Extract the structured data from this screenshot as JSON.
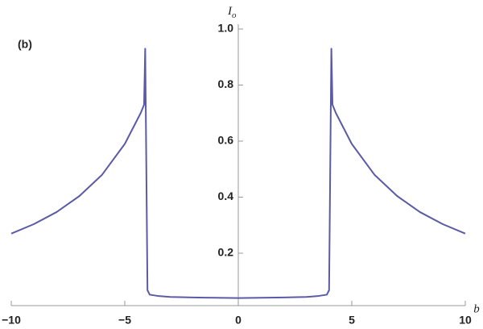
{
  "chart_data": {
    "type": "line",
    "annotation": "(b)",
    "x_label": "b",
    "y_label": {
      "base": "I",
      "sub": "o"
    },
    "x": [
      -10,
      -9,
      -8,
      -7,
      -6,
      -5,
      -4.3,
      -4.15,
      -4.1,
      -4.0,
      -3.9,
      -3.5,
      -3,
      -2,
      -1,
      0,
      1,
      2,
      3,
      3.5,
      3.9,
      4.0,
      4.1,
      4.15,
      4.3,
      5,
      6,
      7,
      8,
      9,
      10
    ],
    "series": [
      {
        "color": "#5b5ba5",
        "values": [
          0.27,
          0.304,
          0.347,
          0.404,
          0.48,
          0.59,
          0.7,
          0.73,
          0.93,
          0.068,
          0.052,
          0.047,
          0.044,
          0.042,
          0.041,
          0.04,
          0.041,
          0.042,
          0.044,
          0.047,
          0.052,
          0.068,
          0.93,
          0.73,
          0.7,
          0.59,
          0.48,
          0.404,
          0.347,
          0.304,
          0.27
        ]
      }
    ],
    "xlim": [
      -10,
      10
    ],
    "ylim": [
      0.013,
      1.0
    ],
    "xticks": [
      {
        "value": -10,
        "label": "−10"
      },
      {
        "value": -5,
        "label": "−5"
      },
      0,
      5,
      10
    ],
    "yticks": [
      0.2,
      0.4,
      0.6,
      0.8,
      {
        "value": 1.0,
        "label": "1.0"
      }
    ],
    "grid": false
  }
}
